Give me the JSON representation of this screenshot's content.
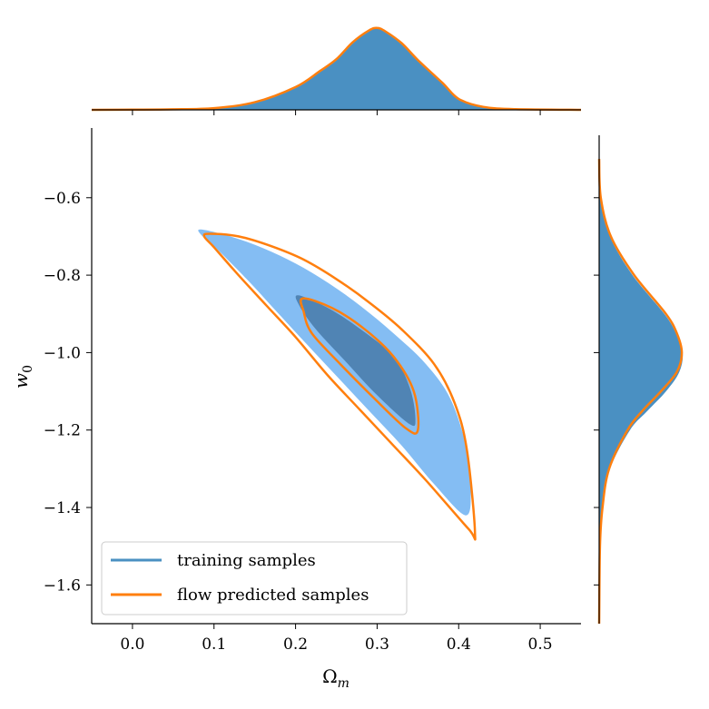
{
  "chart_data": {
    "type": "corner",
    "xlabel": "Ω",
    "xlabel_sub": "m",
    "ylabel": "w",
    "ylabel_sub": "0",
    "xlim": [
      -0.05,
      0.55
    ],
    "ylim": [
      -1.7,
      -0.42
    ],
    "xticks": [
      0.0,
      0.1,
      0.2,
      0.3,
      0.4,
      0.5
    ],
    "xtick_labels": [
      "0.0",
      "0.1",
      "0.2",
      "0.3",
      "0.4",
      "0.5"
    ],
    "yticks": [
      -0.6,
      -0.8,
      -1.0,
      -1.2,
      -1.4,
      -1.6
    ],
    "ytick_labels": [
      "−0.6",
      "−0.8",
      "−1.0",
      "−1.2",
      "−1.4",
      "−1.6"
    ],
    "legend": {
      "position": "lower-left",
      "entries": [
        {
          "label": "training samples",
          "color": "#4a90c2"
        },
        {
          "label": "flow predicted samples",
          "color": "#ff7f0e"
        }
      ]
    },
    "colors": {
      "training_outer": "#84bdf3",
      "training_inner": "#5084b4",
      "training_marginal": "#4a90c2",
      "flow": "#ff7f0e"
    },
    "series": [
      {
        "name": "training samples",
        "contour_outer": [
          [
            0.083,
            -0.682
          ],
          [
            0.12,
            -0.7
          ],
          [
            0.16,
            -0.73
          ],
          [
            0.2,
            -0.77
          ],
          [
            0.24,
            -0.82
          ],
          [
            0.28,
            -0.88
          ],
          [
            0.32,
            -0.95
          ],
          [
            0.36,
            -1.03
          ],
          [
            0.39,
            -1.12
          ],
          [
            0.41,
            -1.25
          ],
          [
            0.415,
            -1.36
          ],
          [
            0.408,
            -1.42
          ],
          [
            0.37,
            -1.34
          ],
          [
            0.33,
            -1.24
          ],
          [
            0.29,
            -1.15
          ],
          [
            0.25,
            -1.06
          ],
          [
            0.21,
            -0.97
          ],
          [
            0.175,
            -0.89
          ],
          [
            0.14,
            -0.81
          ],
          [
            0.1,
            -0.725
          ],
          [
            0.086,
            -0.7
          ]
        ],
        "contour_inner": [
          [
            0.203,
            -0.852
          ],
          [
            0.24,
            -0.885
          ],
          [
            0.28,
            -0.94
          ],
          [
            0.32,
            -1.01
          ],
          [
            0.34,
            -1.09
          ],
          [
            0.347,
            -1.17
          ],
          [
            0.34,
            -1.185
          ],
          [
            0.3,
            -1.11
          ],
          [
            0.26,
            -1.02
          ],
          [
            0.225,
            -0.94
          ],
          [
            0.205,
            -0.88
          ]
        ],
        "marginal_x": [
          [
            -0.05,
            0.0
          ],
          [
            0.0,
            0.002
          ],
          [
            0.05,
            0.006
          ],
          [
            0.1,
            0.02
          ],
          [
            0.15,
            0.09
          ],
          [
            0.2,
            0.27
          ],
          [
            0.23,
            0.47
          ],
          [
            0.25,
            0.61
          ],
          [
            0.27,
            0.8
          ],
          [
            0.29,
            0.94
          ],
          [
            0.3,
            0.96
          ],
          [
            0.31,
            0.92
          ],
          [
            0.33,
            0.78
          ],
          [
            0.35,
            0.58
          ],
          [
            0.38,
            0.31
          ],
          [
            0.4,
            0.13
          ],
          [
            0.43,
            0.035
          ],
          [
            0.47,
            0.008
          ],
          [
            0.55,
            0.0
          ]
        ],
        "marginal_y": [
          [
            -0.5,
            0.0
          ],
          [
            -0.6,
            0.02
          ],
          [
            -0.7,
            0.13
          ],
          [
            -0.8,
            0.4
          ],
          [
            -0.9,
            0.78
          ],
          [
            -0.95,
            0.92
          ],
          [
            -1.0,
            1.0
          ],
          [
            -1.05,
            0.96
          ],
          [
            -1.1,
            0.8
          ],
          [
            -1.15,
            0.58
          ],
          [
            -1.2,
            0.37
          ],
          [
            -1.3,
            0.13
          ],
          [
            -1.4,
            0.04
          ],
          [
            -1.5,
            0.01
          ],
          [
            -1.7,
            0.0
          ]
        ]
      },
      {
        "name": "flow predicted samples",
        "contour_outer": [
          [
            0.095,
            -0.693
          ],
          [
            0.13,
            -0.7
          ],
          [
            0.17,
            -0.725
          ],
          [
            0.21,
            -0.76
          ],
          [
            0.25,
            -0.81
          ],
          [
            0.29,
            -0.87
          ],
          [
            0.33,
            -0.94
          ],
          [
            0.37,
            -1.03
          ],
          [
            0.395,
            -1.13
          ],
          [
            0.41,
            -1.25
          ],
          [
            0.42,
            -1.465
          ],
          [
            0.412,
            -1.455
          ],
          [
            0.36,
            -1.33
          ],
          [
            0.32,
            -1.24
          ],
          [
            0.28,
            -1.15
          ],
          [
            0.24,
            -1.06
          ],
          [
            0.2,
            -0.96
          ],
          [
            0.165,
            -0.88
          ],
          [
            0.13,
            -0.8
          ],
          [
            0.1,
            -0.728
          ],
          [
            0.088,
            -0.7
          ]
        ],
        "contour_inner": [
          [
            0.209,
            -0.86
          ],
          [
            0.245,
            -0.885
          ],
          [
            0.285,
            -0.94
          ],
          [
            0.32,
            -1.01
          ],
          [
            0.345,
            -1.1
          ],
          [
            0.35,
            -1.2
          ],
          [
            0.335,
            -1.195
          ],
          [
            0.295,
            -1.115
          ],
          [
            0.255,
            -1.03
          ],
          [
            0.22,
            -0.95
          ],
          [
            0.21,
            -0.895
          ]
        ],
        "marginal_x": [
          [
            -0.05,
            0.0
          ],
          [
            0.0,
            0.002
          ],
          [
            0.05,
            0.006
          ],
          [
            0.1,
            0.02
          ],
          [
            0.15,
            0.09
          ],
          [
            0.2,
            0.27
          ],
          [
            0.23,
            0.46
          ],
          [
            0.25,
            0.6
          ],
          [
            0.27,
            0.8
          ],
          [
            0.29,
            0.94
          ],
          [
            0.3,
            0.97
          ],
          [
            0.31,
            0.93
          ],
          [
            0.33,
            0.79
          ],
          [
            0.35,
            0.59
          ],
          [
            0.38,
            0.32
          ],
          [
            0.4,
            0.13
          ],
          [
            0.43,
            0.035
          ],
          [
            0.47,
            0.008
          ],
          [
            0.55,
            0.0
          ]
        ],
        "marginal_y": [
          [
            -0.5,
            0.0
          ],
          [
            -0.6,
            0.02
          ],
          [
            -0.7,
            0.14
          ],
          [
            -0.8,
            0.42
          ],
          [
            -0.9,
            0.8
          ],
          [
            -0.95,
            0.93
          ],
          [
            -1.0,
            0.99
          ],
          [
            -1.05,
            0.93
          ],
          [
            -1.1,
            0.74
          ],
          [
            -1.15,
            0.52
          ],
          [
            -1.2,
            0.34
          ],
          [
            -1.3,
            0.12
          ],
          [
            -1.4,
            0.04
          ],
          [
            -1.5,
            0.01
          ],
          [
            -1.7,
            0.0
          ]
        ]
      }
    ]
  }
}
